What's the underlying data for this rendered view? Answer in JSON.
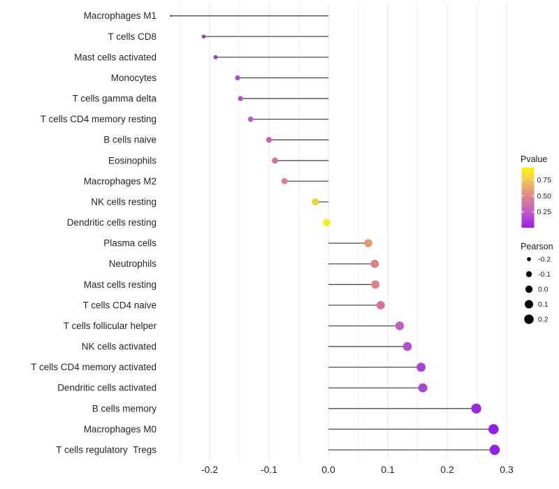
{
  "chart_data": {
    "type": "lollipop",
    "title": "",
    "xlabel": "",
    "ylabel": "",
    "x_tick_labels": [
      "-0.2",
      "-0.1",
      "0.0",
      "0.1",
      "0.2",
      "0.3"
    ],
    "x_ticks": [
      -0.2,
      -0.1,
      0.0,
      0.1,
      0.2,
      0.3
    ],
    "xlim": [
      -0.29,
      0.31
    ],
    "grid": true,
    "background_color": "#ffffff",
    "stem_color": "#4d4d4d",
    "grid_major_color": "#e5e5e5",
    "grid_minor_color": "#f1f1f1",
    "axis_text_color": "#262626",
    "points": [
      {
        "label": "Macrophages M1",
        "pearson": -0.265,
        "pvalue": 0.12,
        "color": "#8730AF"
      },
      {
        "label": "T cells CD8",
        "pearson": -0.21,
        "pvalue": 0.17,
        "color": "#9838C2"
      },
      {
        "label": "Mast cells activated",
        "pearson": -0.19,
        "pvalue": 0.2,
        "color": "#A23FC7"
      },
      {
        "label": "Monocytes",
        "pearson": -0.153,
        "pvalue": 0.25,
        "color": "#AE4BCA"
      },
      {
        "label": "T cells gamma delta",
        "pearson": -0.148,
        "pvalue": 0.26,
        "color": "#B24FCA"
      },
      {
        "label": "T cells CD4 memory resting",
        "pearson": -0.131,
        "pvalue": 0.32,
        "color": "#C25BC5"
      },
      {
        "label": "B cells naive",
        "pearson": -0.1,
        "pvalue": 0.38,
        "color": "#C765B3"
      },
      {
        "label": "Eosinophils",
        "pearson": -0.09,
        "pvalue": 0.44,
        "color": "#D2719F"
      },
      {
        "label": "Macrophages M2",
        "pearson": -0.074,
        "pvalue": 0.52,
        "color": "#DC8287"
      },
      {
        "label": "NK cells resting",
        "pearson": -0.022,
        "pvalue": 0.82,
        "color": "#EFD33B"
      },
      {
        "label": "Dendritic cells resting",
        "pearson": -0.003,
        "pvalue": 0.93,
        "color": "#F8EE00"
      },
      {
        "label": "Plasma cells",
        "pearson": 0.067,
        "pvalue": 0.6,
        "color": "#E79B6B"
      },
      {
        "label": "Neutrophils",
        "pearson": 0.078,
        "pvalue": 0.52,
        "color": "#DD8287"
      },
      {
        "label": "Mast cells resting",
        "pearson": 0.079,
        "pvalue": 0.52,
        "color": "#DC8289"
      },
      {
        "label": "T cells CD4 naive",
        "pearson": 0.088,
        "pvalue": 0.45,
        "color": "#D56F9B"
      },
      {
        "label": "T cells follicular helper",
        "pearson": 0.12,
        "pvalue": 0.33,
        "color": "#C35FC3"
      },
      {
        "label": "NK cells activated",
        "pearson": 0.133,
        "pvalue": 0.27,
        "color": "#B44ECB"
      },
      {
        "label": "T cells CD4 memory activated",
        "pearson": 0.156,
        "pvalue": 0.21,
        "color": "#A742D2"
      },
      {
        "label": "Dendritic cells activated",
        "pearson": 0.159,
        "pvalue": 0.23,
        "color": "#AA45CF"
      },
      {
        "label": "B cells memory",
        "pearson": 0.249,
        "pvalue": 0.07,
        "color": "#9829E2"
      },
      {
        "label": "Macrophages M0",
        "pearson": 0.278,
        "pvalue": 0.02,
        "color": "#921EE9"
      },
      {
        "label": "T cells regulatory  Tregs",
        "pearson": 0.28,
        "pvalue": 0.02,
        "color": "#941FE8"
      }
    ],
    "legend_pvalue": {
      "title": "Pvalue",
      "tick_labels": [
        "0.75",
        "0.50",
        "0.25"
      ],
      "ticks": [
        0.75,
        0.5,
        0.25
      ],
      "range": [
        0,
        0.94
      ],
      "gradient_bottom_to_top": [
        "#9B1DEE",
        "#C35FC2",
        "#DA8191",
        "#E9A76E",
        "#F4D748",
        "#FCF303"
      ],
      "gradient_stops": [
        0,
        0.28,
        0.5,
        0.66,
        0.85,
        1
      ]
    },
    "legend_pearson": {
      "title": "Pearson",
      "size_labels": [
        "-0.2",
        "-0.1",
        "0.0",
        "0.1",
        "0.2"
      ],
      "sizes": [
        -0.2,
        -0.1,
        0.0,
        0.1,
        0.2
      ],
      "dot_color": "#000000"
    }
  }
}
